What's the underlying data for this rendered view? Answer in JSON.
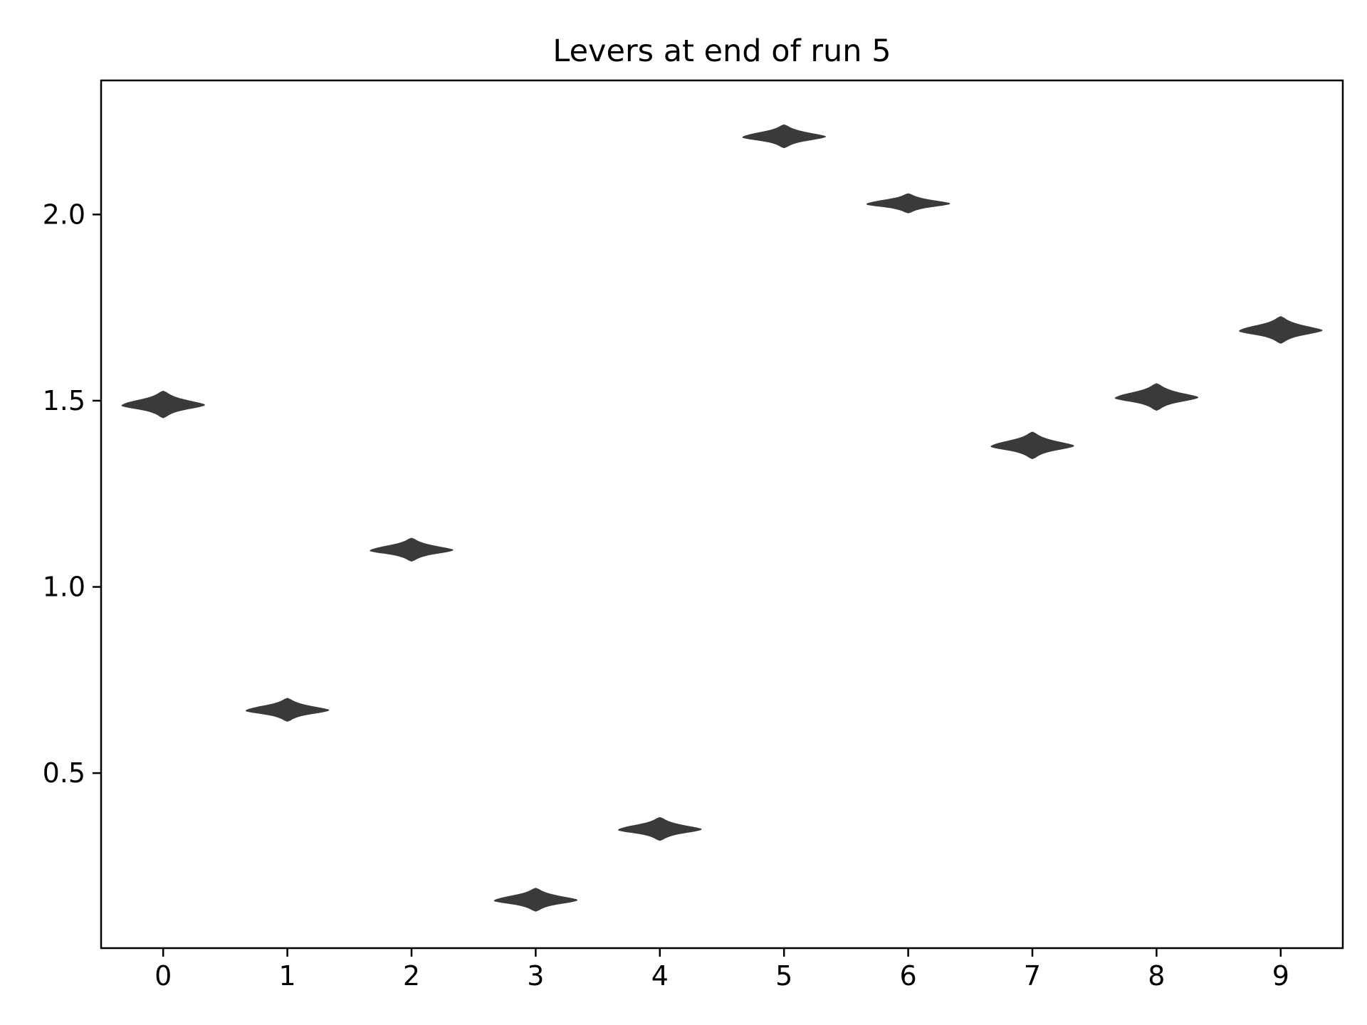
{
  "chart_data": {
    "type": "violin",
    "title": "Levers at end of run 5",
    "xlabel": "",
    "ylabel": "",
    "categories": [
      "0",
      "1",
      "2",
      "3",
      "4",
      "5",
      "6",
      "7",
      "8",
      "9"
    ],
    "values": [
      1.49,
      0.67,
      1.1,
      0.16,
      0.35,
      2.21,
      2.03,
      1.38,
      1.51,
      1.69
    ],
    "spread": [
      0.035,
      0.03,
      0.03,
      0.03,
      0.03,
      0.03,
      0.025,
      0.035,
      0.035,
      0.035
    ],
    "xlim": [
      -0.5,
      9.5
    ],
    "ylim": [
      0.03,
      2.36
    ],
    "yticks": [
      0.5,
      1.0,
      1.5,
      2.0
    ],
    "ytick_labels": [
      "0.5",
      "1.0",
      "1.5",
      "2.0"
    ],
    "grid": false,
    "colors": {
      "violin": "#3a3a3a",
      "axes": "#000000",
      "background": "#ffffff"
    }
  }
}
